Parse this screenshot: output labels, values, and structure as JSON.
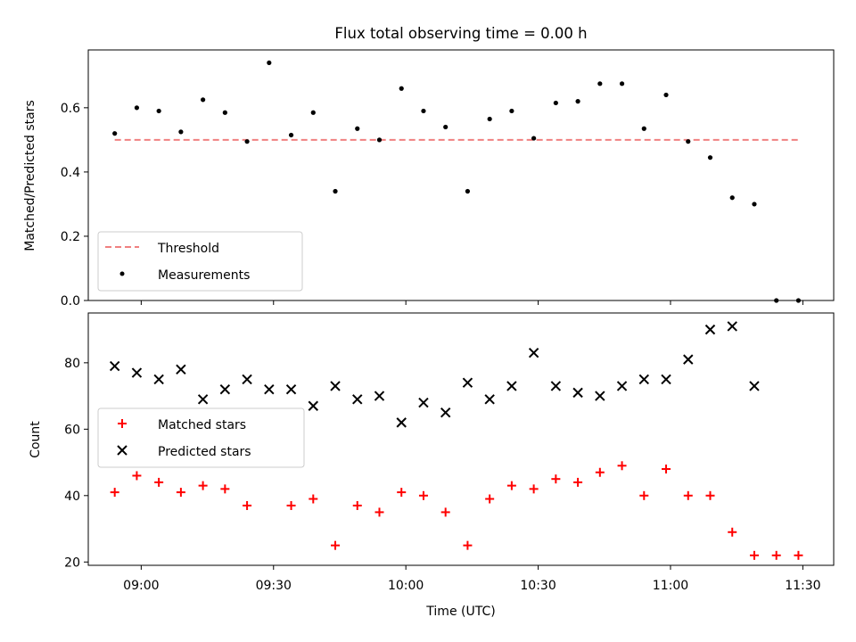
{
  "figure": {
    "title": "Flux total observing time = 0.00 h"
  },
  "chart_data": [
    {
      "type": "scatter",
      "ylabel": "Matched/Predicted stars",
      "xlim": [
        "08:48",
        "11:37"
      ],
      "ylim": [
        0,
        0.78
      ],
      "yticks": [
        "0.0",
        "0.2",
        "0.4",
        "0.6"
      ],
      "x_tick_labels_shown": false,
      "legend": {
        "placement": "lower-left",
        "entries": [
          "Threshold",
          "Measurements"
        ]
      },
      "series": [
        {
          "name": "Threshold",
          "style": "dashed-line",
          "color": "#f08080",
          "x": [
            "08:54",
            "11:29"
          ],
          "y": [
            0.5,
            0.5
          ]
        },
        {
          "name": "Measurements",
          "style": "dot",
          "color": "#000000",
          "x": [
            "08:54",
            "08:59",
            "09:04",
            "09:09",
            "09:14",
            "09:19",
            "09:24",
            "09:29",
            "09:34",
            "09:39",
            "09:44",
            "09:49",
            "09:54",
            "09:59",
            "10:04",
            "10:09",
            "10:14",
            "10:19",
            "10:24",
            "10:29",
            "10:34",
            "10:39",
            "10:44",
            "10:49",
            "10:54",
            "10:59",
            "11:04",
            "11:09",
            "11:14",
            "11:19",
            "11:24",
            "11:29"
          ],
          "y": [
            0.52,
            0.6,
            0.59,
            0.525,
            0.625,
            0.585,
            0.495,
            0.74,
            0.515,
            0.585,
            0.34,
            0.535,
            0.5,
            0.66,
            0.59,
            0.54,
            0.34,
            0.565,
            0.59,
            0.505,
            0.615,
            0.62,
            0.675,
            0.675,
            0.535,
            0.64,
            0.495,
            0.445,
            0.32,
            0.3,
            0.0,
            0.0
          ]
        }
      ]
    },
    {
      "type": "scatter",
      "xlabel": "Time (UTC)",
      "ylabel": "Count",
      "xlim": [
        "08:48",
        "11:37"
      ],
      "ylim": [
        19,
        95
      ],
      "yticks": [
        "20",
        "40",
        "60",
        "80"
      ],
      "xticks": [
        "09:00",
        "09:30",
        "10:00",
        "10:30",
        "11:00",
        "11:30"
      ],
      "legend": {
        "placement": "center-left",
        "entries": [
          "Matched stars",
          "Predicted stars"
        ]
      },
      "series": [
        {
          "name": "Matched stars",
          "marker": "plus",
          "color": "#ff0000",
          "x": [
            "08:54",
            "08:59",
            "09:04",
            "09:09",
            "09:14",
            "09:19",
            "09:24",
            "09:34",
            "09:39",
            "09:44",
            "09:49",
            "09:54",
            "09:59",
            "10:04",
            "10:09",
            "10:14",
            "10:19",
            "10:24",
            "10:29",
            "10:34",
            "10:39",
            "10:44",
            "10:49",
            "10:54",
            "10:59",
            "11:04",
            "11:09",
            "11:14",
            "11:19",
            "11:24",
            "11:29"
          ],
          "y": [
            41,
            46,
            44,
            41,
            43,
            42,
            37,
            37,
            39,
            25,
            37,
            35,
            41,
            40,
            35,
            25,
            39,
            43,
            42,
            45,
            44,
            47,
            49,
            40,
            48,
            40,
            40,
            29,
            22,
            22,
            22
          ]
        },
        {
          "name": "Predicted stars",
          "marker": "x",
          "color": "#000000",
          "x": [
            "08:54",
            "08:59",
            "09:04",
            "09:09",
            "09:14",
            "09:19",
            "09:24",
            "09:29",
            "09:34",
            "09:39",
            "09:44",
            "09:49",
            "09:54",
            "09:59",
            "10:04",
            "10:09",
            "10:14",
            "10:19",
            "10:24",
            "10:29",
            "10:34",
            "10:39",
            "10:44",
            "10:49",
            "10:54",
            "10:59",
            "11:04",
            "11:09",
            "11:14",
            "11:19"
          ],
          "y": [
            79,
            77,
            75,
            78,
            69,
            72,
            75,
            72,
            72,
            67,
            73,
            69,
            70,
            62,
            68,
            65,
            74,
            69,
            73,
            83,
            73,
            71,
            70,
            73,
            75,
            75,
            81,
            90,
            91,
            73
          ]
        }
      ]
    }
  ]
}
